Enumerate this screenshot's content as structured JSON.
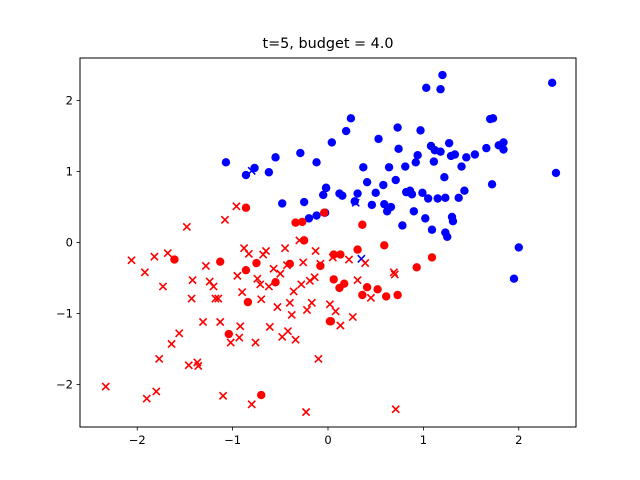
{
  "chart_data": {
    "type": "scatter",
    "title": "t=5, budget = 4.0",
    "xlabel": "",
    "ylabel": "",
    "xlim": [
      -2.6,
      2.6
    ],
    "ylim": [
      -2.6,
      2.6
    ],
    "xticks": [
      -2,
      -1,
      0,
      1,
      2
    ],
    "xtick_labels": [
      "−2",
      "−1",
      "0",
      "1",
      "2"
    ],
    "yticks": [
      -2,
      -1,
      0,
      1,
      2
    ],
    "ytick_labels": [
      "−2",
      "−1",
      "0",
      "1",
      "2"
    ],
    "grid": false,
    "colors": {
      "blue": "#0000ff",
      "red": "#ff0000"
    },
    "series": [
      {
        "color": "blue",
        "marker": "circle",
        "points": [
          [
            -1.07,
            1.13
          ],
          [
            -0.86,
            0.95
          ],
          [
            -0.77,
            1.05
          ],
          [
            -0.62,
            0.99
          ],
          [
            -0.55,
            1.2
          ],
          [
            -0.48,
            0.55
          ],
          [
            -0.29,
            1.26
          ],
          [
            -0.25,
            0.57
          ],
          [
            -0.2,
            0.34
          ],
          [
            -0.12,
            0.38
          ],
          [
            -0.12,
            1.13
          ],
          [
            -0.05,
            0.67
          ],
          [
            -0.03,
            0.42
          ],
          [
            -0.02,
            0.77
          ],
          [
            -0.02,
            0.77
          ],
          [
            0.04,
            1.41
          ],
          [
            0.12,
            0.69
          ],
          [
            0.15,
            0.66
          ],
          [
            0.19,
            1.57
          ],
          [
            0.24,
            1.75
          ],
          [
            0.28,
            0.58
          ],
          [
            0.31,
            0.69
          ],
          [
            0.37,
            1.06
          ],
          [
            0.41,
            0.85
          ],
          [
            0.46,
            0.53
          ],
          [
            0.5,
            0.7
          ],
          [
            0.53,
            1.46
          ],
          [
            0.58,
            0.81
          ],
          [
            0.59,
            0.54
          ],
          [
            0.62,
            0.44
          ],
          [
            0.64,
            1.06
          ],
          [
            0.66,
            0.5
          ],
          [
            0.71,
            0.88
          ],
          [
            0.73,
            1.62
          ],
          [
            0.74,
            1.32
          ],
          [
            0.78,
            0.24
          ],
          [
            0.81,
            1.07
          ],
          [
            0.82,
            0.71
          ],
          [
            0.86,
            0.73
          ],
          [
            0.88,
            0.68
          ],
          [
            0.9,
            0.44
          ],
          [
            0.92,
            1.13
          ],
          [
            0.94,
            1.23
          ],
          [
            0.97,
            1.58
          ],
          [
            0.99,
            0.7
          ],
          [
            1.02,
            0.34
          ],
          [
            1.03,
            2.18
          ],
          [
            1.05,
            0.62
          ],
          [
            1.08,
            1.36
          ],
          [
            1.09,
            0.18
          ],
          [
            1.11,
            1.14
          ],
          [
            1.12,
            1.3
          ],
          [
            1.15,
            0.62
          ],
          [
            1.18,
            1.28
          ],
          [
            1.2,
            2.36
          ],
          [
            1.22,
            0.92
          ],
          [
            1.23,
            0.14
          ],
          [
            1.23,
            0.63
          ],
          [
            1.25,
            0.08
          ],
          [
            1.27,
            1.4
          ],
          [
            1.29,
            1.22
          ],
          [
            1.3,
            0.36
          ],
          [
            1.31,
            0.3
          ],
          [
            1.33,
            1.24
          ],
          [
            1.37,
            0.63
          ],
          [
            1.4,
            1.07
          ],
          [
            1.43,
            0.73
          ],
          [
            1.45,
            1.2
          ],
          [
            1.54,
            1.24
          ],
          [
            1.66,
            1.33
          ],
          [
            1.7,
            1.74
          ],
          [
            1.72,
            0.82
          ],
          [
            1.73,
            1.75
          ],
          [
            1.79,
            1.37
          ],
          [
            1.84,
            1.41
          ],
          [
            1.84,
            1.31
          ],
          [
            1.95,
            -0.51
          ],
          [
            2.0,
            -0.07
          ],
          [
            2.35,
            2.25
          ],
          [
            2.39,
            0.98
          ],
          [
            1.18,
            2.16
          ]
        ]
      },
      {
        "color": "blue",
        "marker": "x",
        "points": [
          [
            -0.8,
            1.01
          ],
          [
            0.29,
            0.56
          ],
          [
            0.35,
            -0.23
          ]
        ]
      },
      {
        "color": "red",
        "marker": "circle",
        "points": [
          [
            -1.61,
            -0.24
          ],
          [
            -1.13,
            -0.27
          ],
          [
            -1.04,
            -1.29
          ],
          [
            -0.86,
            -0.39
          ],
          [
            -0.86,
            0.49
          ],
          [
            -0.84,
            -0.84
          ],
          [
            -0.75,
            -0.29
          ],
          [
            -0.7,
            -2.15
          ],
          [
            -0.55,
            -0.56
          ],
          [
            -0.4,
            -0.3
          ],
          [
            -0.34,
            0.28
          ],
          [
            -0.27,
            0.29
          ],
          [
            -0.25,
            0.03
          ],
          [
            -0.04,
            0.42
          ],
          [
            -0.08,
            -0.33
          ],
          [
            0.03,
            -1.11
          ],
          [
            0.06,
            -0.17
          ],
          [
            0.06,
            -0.52
          ],
          [
            0.12,
            -0.64
          ],
          [
            0.13,
            -0.17
          ],
          [
            0.17,
            -0.58
          ],
          [
            0.31,
            -0.1
          ],
          [
            0.36,
            0.25
          ],
          [
            0.36,
            -0.74
          ],
          [
            0.41,
            -0.63
          ],
          [
            0.52,
            -0.66
          ],
          [
            0.59,
            -0.04
          ],
          [
            0.61,
            -0.76
          ],
          [
            0.73,
            -0.74
          ],
          [
            0.93,
            -0.35
          ],
          [
            1.09,
            -0.21
          ],
          [
            0.02,
            -1.11
          ]
        ]
      },
      {
        "color": "red",
        "marker": "x",
        "points": [
          [
            -2.33,
            -2.03
          ],
          [
            -2.06,
            -0.25
          ],
          [
            -1.92,
            -0.42
          ],
          [
            -1.9,
            -2.2
          ],
          [
            -1.82,
            -0.2
          ],
          [
            -1.8,
            -2.1
          ],
          [
            -1.77,
            -1.64
          ],
          [
            -1.73,
            -0.62
          ],
          [
            -1.68,
            -0.15
          ],
          [
            -1.64,
            -1.43
          ],
          [
            -1.56,
            -1.28
          ],
          [
            -1.48,
            0.22
          ],
          [
            -1.46,
            -1.73
          ],
          [
            -1.43,
            -0.79
          ],
          [
            -1.42,
            -0.53
          ],
          [
            -1.37,
            -1.69
          ],
          [
            -1.36,
            -1.74
          ],
          [
            -1.31,
            -1.12
          ],
          [
            -1.28,
            -0.33
          ],
          [
            -1.24,
            -0.55
          ],
          [
            -1.2,
            -0.62
          ],
          [
            -1.18,
            -0.79
          ],
          [
            -1.15,
            -0.79
          ],
          [
            -1.13,
            -1.12
          ],
          [
            -1.1,
            -2.16
          ],
          [
            -1.08,
            0.32
          ],
          [
            -1.02,
            -1.41
          ],
          [
            -0.96,
            0.51
          ],
          [
            -0.95,
            -0.47
          ],
          [
            -0.93,
            -1.34
          ],
          [
            -0.92,
            -1.18
          ],
          [
            -0.9,
            -0.7
          ],
          [
            -0.88,
            -0.08
          ],
          [
            -0.83,
            -0.16
          ],
          [
            -0.8,
            -2.28
          ],
          [
            -0.76,
            -1.41
          ],
          [
            -0.74,
            -0.51
          ],
          [
            -0.71,
            -0.59
          ],
          [
            -0.7,
            -0.8
          ],
          [
            -0.68,
            -0.17
          ],
          [
            -0.65,
            -0.12
          ],
          [
            -0.62,
            -0.62
          ],
          [
            -0.61,
            -1.19
          ],
          [
            -0.57,
            -0.37
          ],
          [
            -0.53,
            -0.91
          ],
          [
            -0.5,
            -0.44
          ],
          [
            -0.48,
            -1.33
          ],
          [
            -0.45,
            -0.08
          ],
          [
            -0.43,
            -0.32
          ],
          [
            -0.42,
            -1.25
          ],
          [
            -0.4,
            -0.85
          ],
          [
            -0.38,
            -1.02
          ],
          [
            -0.36,
            -0.69
          ],
          [
            -0.34,
            -1.37
          ],
          [
            -0.3,
            0.03
          ],
          [
            -0.28,
            -0.59
          ],
          [
            -0.26,
            -0.28
          ],
          [
            -0.23,
            -2.39
          ],
          [
            -0.22,
            -0.95
          ],
          [
            -0.19,
            -0.54
          ],
          [
            -0.17,
            -0.85
          ],
          [
            -0.14,
            -0.49
          ],
          [
            -0.13,
            -0.12
          ],
          [
            -0.1,
            -1.64
          ],
          [
            -0.08,
            -0.3
          ],
          [
            0.02,
            -0.87
          ],
          [
            0.05,
            -0.21
          ],
          [
            0.08,
            -0.97
          ],
          [
            0.13,
            -1.17
          ],
          [
            0.22,
            -0.24
          ],
          [
            0.26,
            -1.05
          ],
          [
            0.31,
            -0.53
          ],
          [
            0.39,
            -0.29
          ],
          [
            0.45,
            -0.78
          ],
          [
            0.69,
            -0.42
          ],
          [
            0.7,
            -0.45
          ],
          [
            0.71,
            -2.35
          ]
        ]
      }
    ]
  }
}
